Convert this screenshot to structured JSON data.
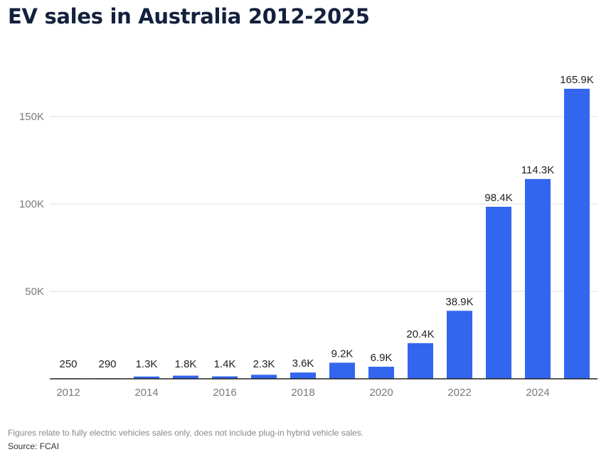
{
  "title": "EV sales in Australia 2012-2025",
  "footnote": "Figures relate to fully electric vehicles sales only, does not include plug-in hybrid vehicle sales.",
  "source": "Source: FCAI",
  "colors": {
    "bar": "#3366ee",
    "grid": "#e6e6e6",
    "axis": "#222222"
  },
  "chart_data": {
    "type": "bar",
    "categories": [
      "2012",
      "2013",
      "2014",
      "2015",
      "2016",
      "2017",
      "2018",
      "2019",
      "2020",
      "2021",
      "2022",
      "2023",
      "2024",
      "2025"
    ],
    "values": [
      250,
      290,
      1300,
      1800,
      1400,
      2300,
      3600,
      9200,
      6900,
      20400,
      38900,
      98400,
      114300,
      165900
    ],
    "data_labels": [
      "250",
      "290",
      "1.3K",
      "1.8K",
      "1.4K",
      "2.3K",
      "3.6K",
      "9.2K",
      "6.9K",
      "20.4K",
      "38.9K",
      "98.4K",
      "114.3K",
      "165.9K"
    ],
    "x_tick_labels": [
      "2012",
      "2014",
      "2016",
      "2018",
      "2020",
      "2022",
      "2024"
    ],
    "y_ticks": [
      50000,
      100000,
      150000
    ],
    "y_tick_labels": [
      "50K",
      "100K",
      "150K"
    ],
    "ylim": [
      0,
      175000
    ],
    "grid": true,
    "xlabel": "",
    "ylabel": ""
  }
}
